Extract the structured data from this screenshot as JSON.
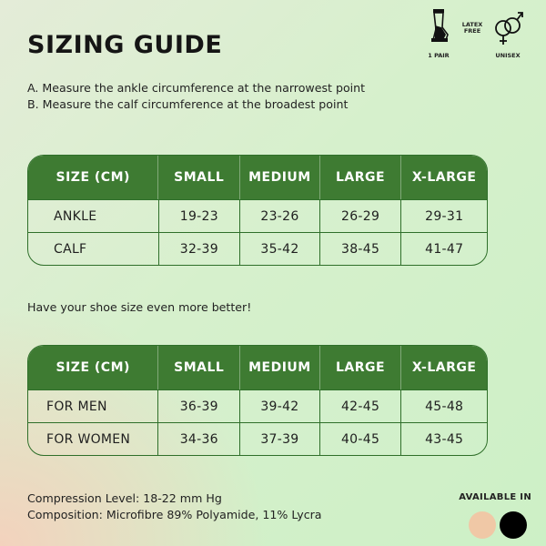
{
  "title": "SIZING GUIDE",
  "badges": {
    "pair_label": "1 PAIR",
    "latex_label_line1": "LATEX",
    "latex_label_line2": "FREE",
    "unisex_label": "UNISEX"
  },
  "instructions": [
    "A. Measure the ankle circumference at the narrowest point",
    "B. Measure the calf circumference at the broadest point"
  ],
  "table_calf": {
    "headers": [
      "SIZE (CM)",
      "SMALL",
      "MEDIUM",
      "LARGE",
      "X-LARGE"
    ],
    "rows": [
      [
        "ANKLE",
        "19-23",
        "23-26",
        "26-29",
        "29-31"
      ],
      [
        "CALF",
        "32-39",
        "35-42",
        "38-45",
        "41-47"
      ]
    ]
  },
  "shoe_note": "Have your shoe size even more better!",
  "table_shoe": {
    "headers": [
      "SIZE (CM)",
      "SMALL",
      "MEDIUM",
      "LARGE",
      "X-LARGE"
    ],
    "rows": [
      [
        "FOR MEN",
        "36-39",
        "39-42",
        "42-45",
        "45-48"
      ],
      [
        "FOR WOMEN",
        "34-36",
        "37-39",
        "40-45",
        "43-45"
      ]
    ]
  },
  "footer": {
    "compression": "Compression Level: 18-22 mm Hg",
    "composition": "Composition: Microfibre 89% Polyamide, 11% Lycra"
  },
  "available_in": {
    "label": "AVAILABLE IN",
    "colors": [
      "#f0c8a6",
      "#000000"
    ]
  },
  "colors": {
    "header_green": "#3e7b32",
    "border_green": "#2f6f2a"
  },
  "icons": [
    "sock-icon",
    "venus-mars-icon"
  ]
}
